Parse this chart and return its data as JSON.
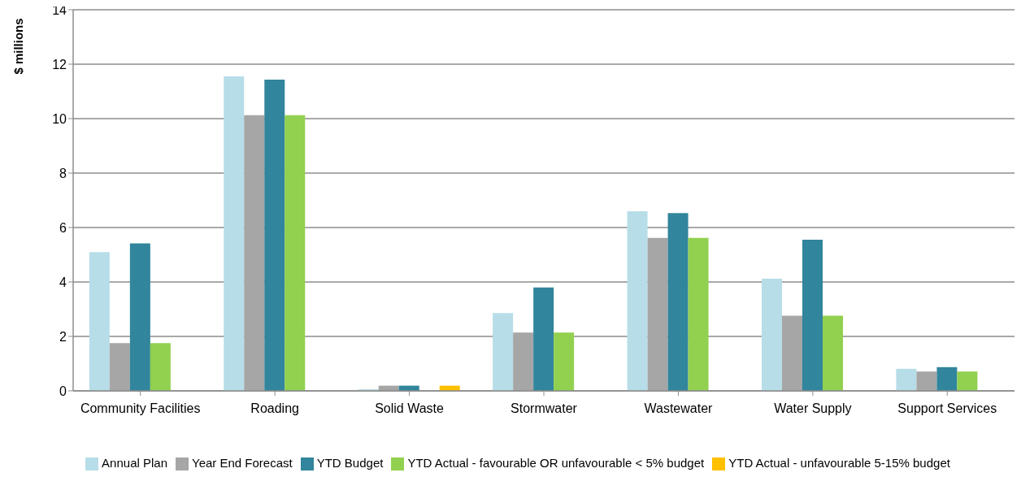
{
  "chart_data": {
    "type": "bar",
    "ylabel": "$ millions",
    "categories": [
      "Community Facilities",
      "Roading",
      "Solid Waste",
      "Stormwater",
      "Wastewater",
      "Water Supply",
      "Support Services"
    ],
    "series": [
      {
        "name": "Annual Plan",
        "color": "#b7dde8",
        "values": [
          5.1,
          11.55,
          0.06,
          2.86,
          6.6,
          4.12,
          0.81
        ]
      },
      {
        "name": "Year End Forecast",
        "color": "#a6a6a6",
        "values": [
          1.75,
          10.13,
          0.19,
          2.14,
          5.62,
          2.76,
          0.71
        ]
      },
      {
        "name": "YTD Budget",
        "color": "#31859c",
        "values": [
          5.42,
          11.43,
          0.19,
          3.8,
          6.53,
          5.55,
          0.87
        ]
      },
      {
        "name": "YTD Actual - favourable OR unfavourable < 5% budget",
        "color": "#92d050",
        "values": [
          1.75,
          10.13,
          null,
          2.14,
          5.62,
          2.76,
          0.71
        ]
      },
      {
        "name": "YTD Actual - unfavourable 5-15% budget",
        "color": "#ffc000",
        "values": [
          null,
          null,
          0.19,
          null,
          null,
          null,
          null
        ]
      }
    ],
    "ylim": [
      0,
      14
    ],
    "yticks": [
      0,
      2,
      4,
      6,
      8,
      10,
      12,
      14
    ],
    "grid": "y",
    "legend": "bottom"
  }
}
